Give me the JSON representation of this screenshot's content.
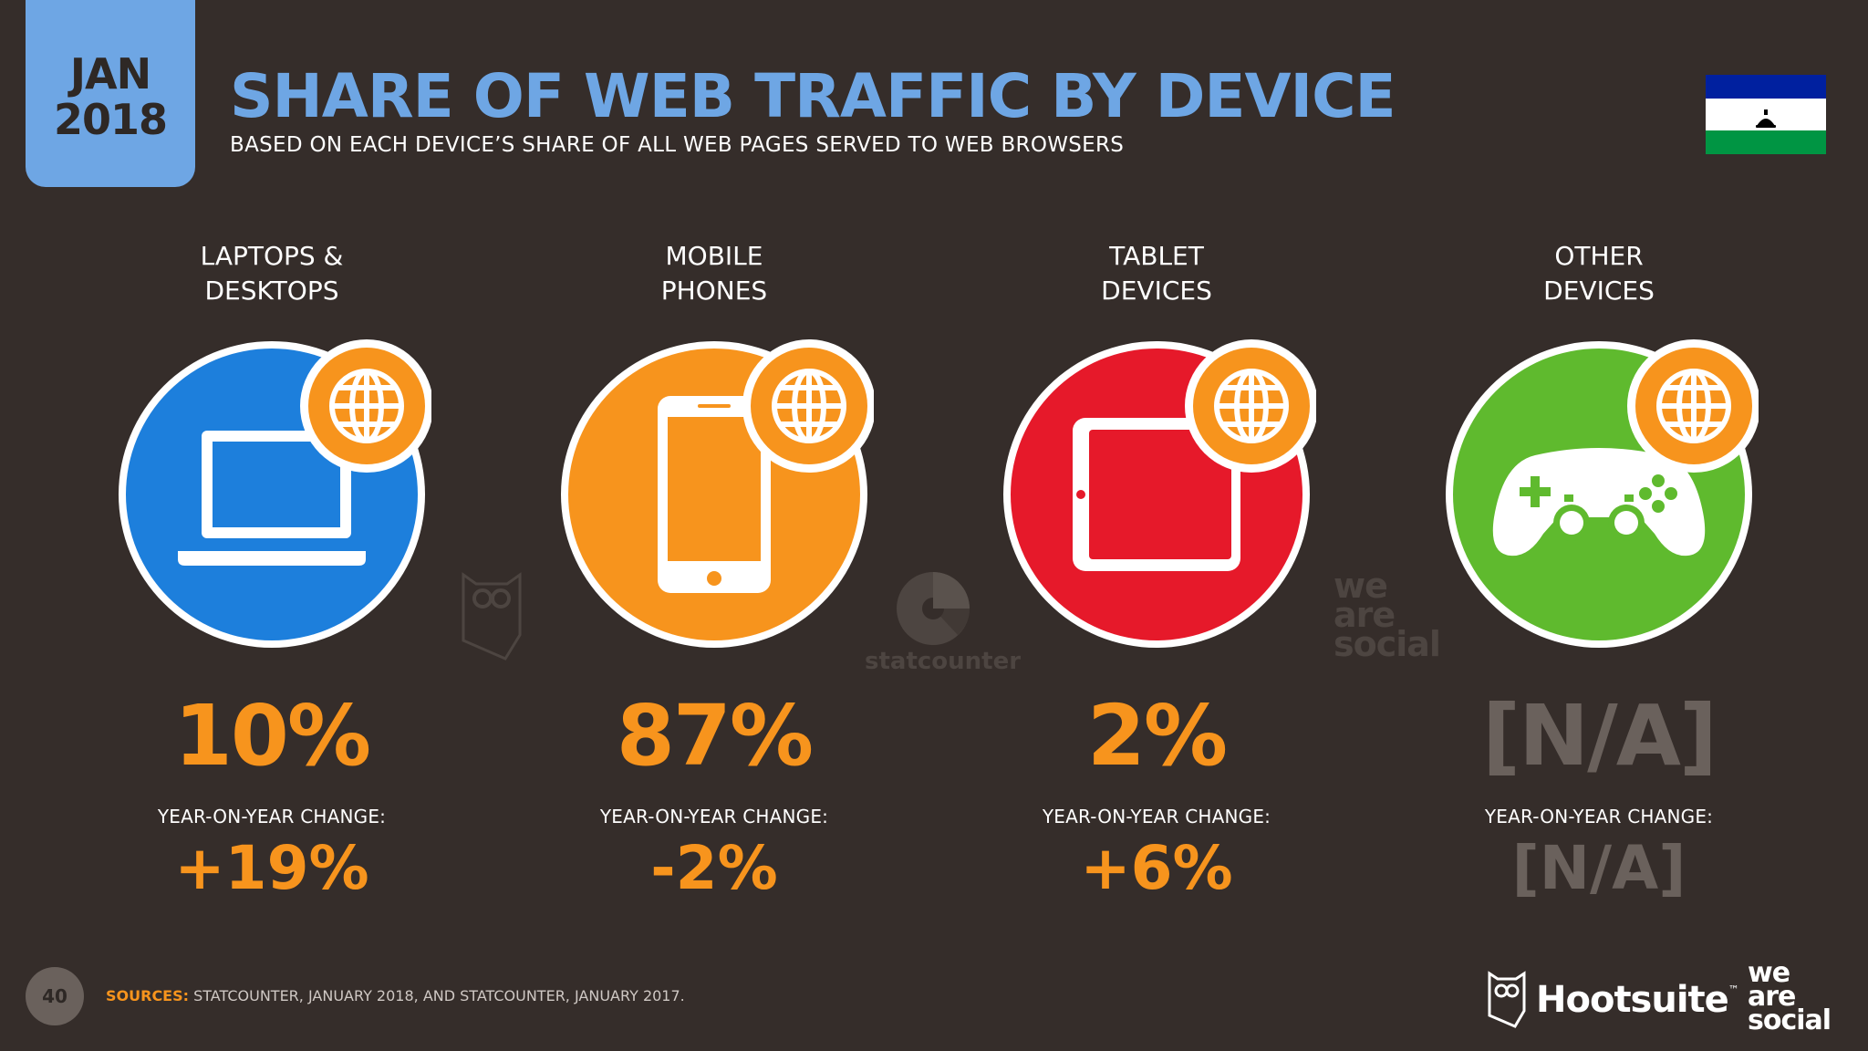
{
  "header": {
    "month": "JAN",
    "year": "2018",
    "title": "SHARE OF WEB TRAFFIC BY DEVICE",
    "subtitle": "BASED ON EACH DEVICE’S SHARE OF ALL WEB PAGES SERVED TO WEB BROWSERS"
  },
  "devices": [
    {
      "label_line1": "LAPTOPS &",
      "label_line2": "DESKTOPS",
      "share": "10%",
      "yoy_label": "YEAR-ON-YEAR CHANGE:",
      "yoy": "+19%",
      "icon": "laptop-icon",
      "color": "#1d7fdc"
    },
    {
      "label_line1": "MOBILE",
      "label_line2": "PHONES",
      "share": "87%",
      "yoy_label": "YEAR-ON-YEAR CHANGE:",
      "yoy": "-2%",
      "icon": "mobile-phone-icon",
      "color": "#f7941d"
    },
    {
      "label_line1": "TABLET",
      "label_line2": "DEVICES",
      "share": "2%",
      "yoy_label": "YEAR-ON-YEAR CHANGE:",
      "yoy": "+6%",
      "icon": "tablet-icon",
      "color": "#e6192a"
    },
    {
      "label_line1": "OTHER",
      "label_line2": "DEVICES",
      "share": "[N/A]",
      "yoy_label": "YEAR-ON-YEAR CHANGE:",
      "yoy": "[N/A]",
      "icon": "game-controller-icon",
      "color": "#5fba2e"
    }
  ],
  "watermarks": {
    "statcounter": "statcounter",
    "wearesocial_1": "we",
    "wearesocial_2": "are",
    "wearesocial_3": "social"
  },
  "footer": {
    "page_number": "40",
    "sources_label": "SOURCES:",
    "sources_text": " STATCOUNTER, JANUARY 2018, AND STATCOUNTER, JANUARY 2017.",
    "brand": "Hootsuite",
    "tm": "™",
    "was_1": "we",
    "was_2": "are",
    "was_3": "social"
  },
  "colors": {
    "background": "#352d2a",
    "accent_blue": "#6ea6e4",
    "accent_orange": "#f7941d",
    "muted": "#6a615c"
  }
}
